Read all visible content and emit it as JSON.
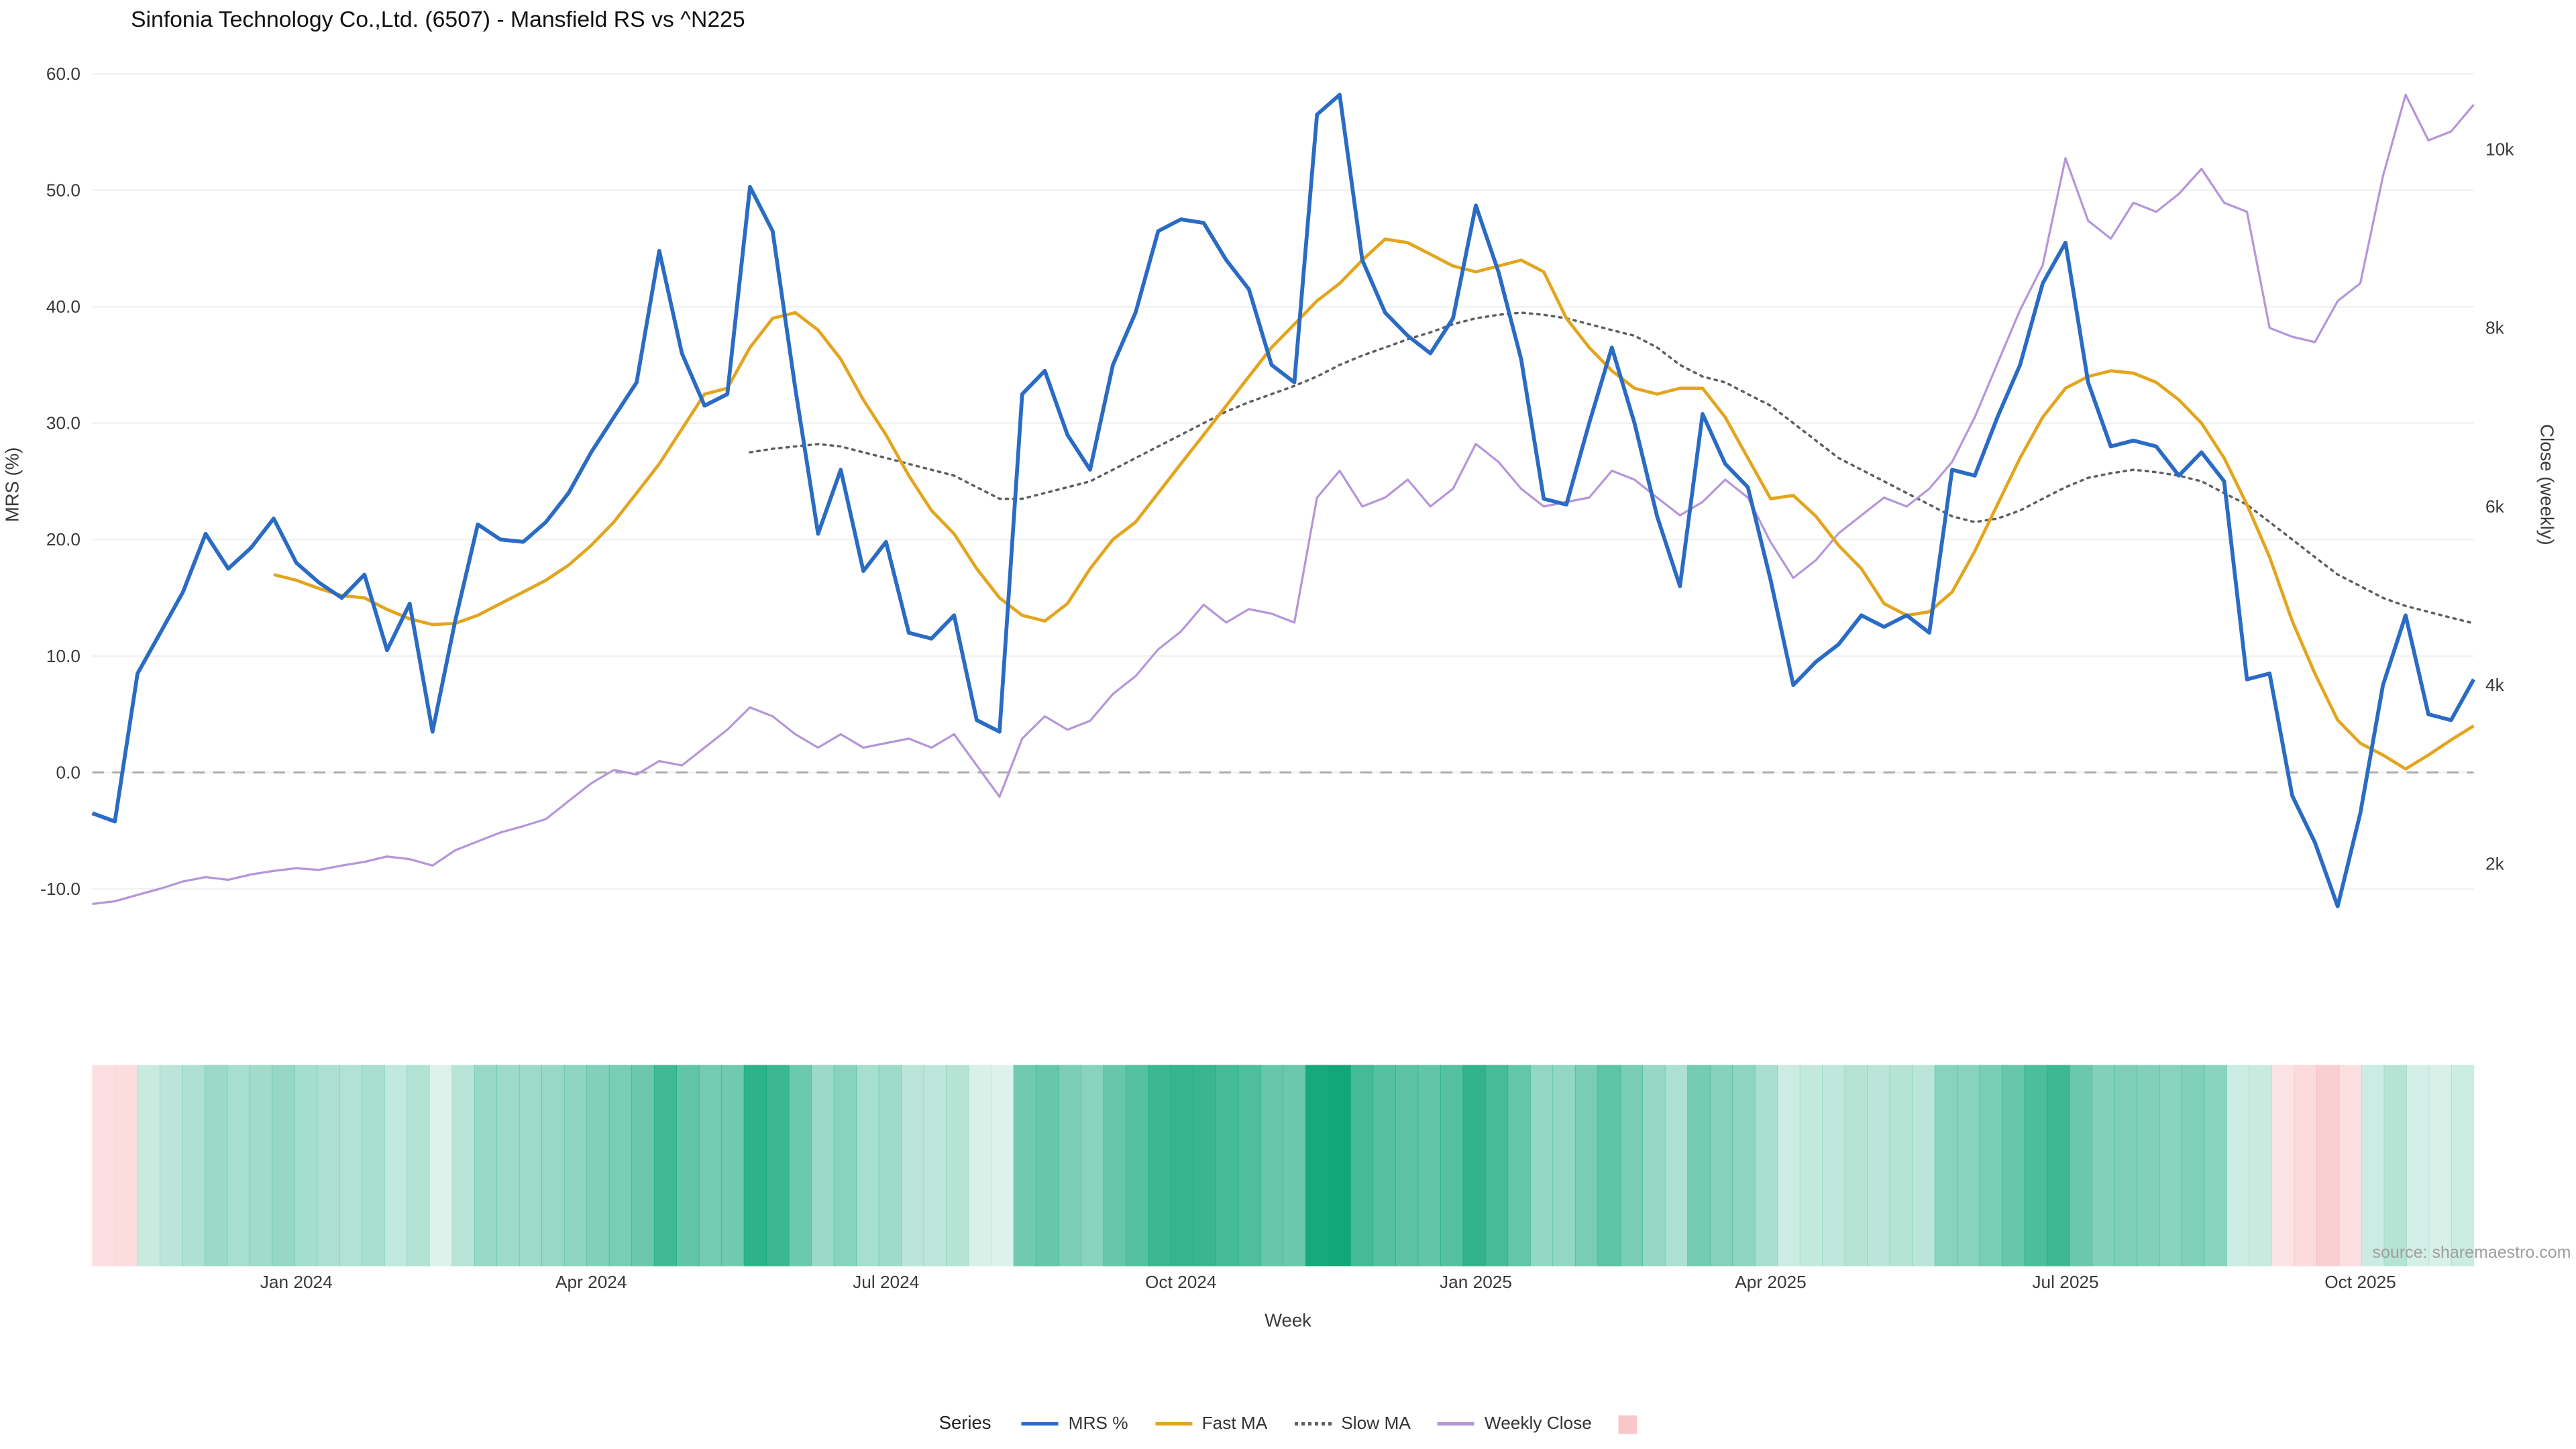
{
  "chart_data": {
    "type": "line",
    "title": "Sinfonia Technology Co.,Ltd. (6507) - Mansfield RS vs ^N225",
    "xlabel": "Week",
    "ylabel_left": "MRS (%)",
    "ylabel_right": "Close (weekly)",
    "n_points": 106,
    "grid": "horizontal-faint",
    "zero_dashed_line": true,
    "x_ticks": {
      "indices": [
        9,
        22,
        35,
        48,
        61,
        74,
        87,
        100
      ],
      "labels": [
        "Jan 2024",
        "Apr 2024",
        "Jul 2024",
        "Oct 2024",
        "Jan 2025",
        "Apr 2025",
        "Jul 2025",
        "Oct 2025"
      ]
    },
    "y_left": {
      "ticks": [
        -10,
        0,
        10,
        20,
        30,
        40,
        50,
        60
      ],
      "labels": [
        "-10.0",
        "0.0",
        "10.0",
        "20.0",
        "30.0",
        "40.0",
        "50.0",
        "60.0"
      ],
      "range": [
        -14,
        62
      ]
    },
    "y_right": {
      "ticks": [
        2000,
        4000,
        6000,
        8000,
        10000
      ],
      "labels": [
        "2k",
        "4k",
        "6k",
        "8k",
        "10k"
      ],
      "range": [
        1400,
        10800
      ]
    },
    "series": [
      {
        "name": "MRS %",
        "axis": "left",
        "color": "#2a6bc4",
        "style": "solid",
        "width": 2.3,
        "values": [
          -3.5,
          -4.2,
          8.5,
          12,
          15.5,
          20.5,
          17.5,
          19.3,
          21.8,
          18,
          16.3,
          15,
          17,
          10.5,
          14.5,
          3.5,
          13,
          21.3,
          20,
          19.8,
          21.5,
          24,
          27.5,
          30.5,
          33.5,
          44.8,
          36,
          31.5,
          32.5,
          50.3,
          46.5,
          33,
          20.5,
          26,
          17.3,
          19.8,
          12,
          11.5,
          13.5,
          4.5,
          3.5,
          32.5,
          34.5,
          29,
          26,
          35,
          39.5,
          46.5,
          47.5,
          47.2,
          44,
          41.5,
          35,
          33.5,
          56.5,
          58.2,
          44,
          39.5,
          37.5,
          36,
          39,
          48.7,
          43,
          35.5,
          23.5,
          23,
          30,
          36.5,
          30,
          22,
          16,
          30.8,
          26.5,
          24.5,
          16.5,
          7.5,
          9.5,
          11,
          13.5,
          12.5,
          13.5,
          12,
          26,
          25.5,
          30.5,
          35,
          42,
          45.5,
          33.5,
          28,
          28.5,
          28,
          25.5,
          27.5,
          25,
          8,
          8.5,
          -2,
          -6,
          -11.5,
          -3.5,
          7.5,
          13.5,
          5,
          4.5,
          8
        ]
      },
      {
        "name": "Fast MA",
        "axis": "left",
        "color": "#e3a51e",
        "style": "solid",
        "width": 1.9,
        "values": [
          null,
          null,
          null,
          null,
          null,
          null,
          null,
          null,
          17,
          16.5,
          15.8,
          15.2,
          15,
          14,
          13.2,
          12.7,
          12.8,
          13.5,
          14.5,
          15.5,
          16.5,
          17.8,
          19.5,
          21.5,
          24,
          26.5,
          29.5,
          32.5,
          33,
          36.5,
          39,
          39.5,
          38,
          35.5,
          32,
          29,
          25.5,
          22.5,
          20.5,
          17.5,
          15,
          13.5,
          13,
          14.5,
          17.5,
          20,
          21.5,
          24,
          26.5,
          29,
          31.5,
          34,
          36.5,
          38.5,
          40.5,
          42,
          44,
          45.8,
          45.5,
          44.5,
          43.5,
          43,
          43.5,
          44,
          43,
          39,
          36.5,
          34.5,
          33,
          32.5,
          33,
          33,
          30.5,
          27,
          23.5,
          23.8,
          22,
          19.5,
          17.5,
          14.5,
          13.5,
          13.8,
          15.5,
          19,
          23,
          27,
          30.5,
          33,
          34,
          34.5,
          34.3,
          33.5,
          32,
          30,
          27,
          23,
          18.5,
          13,
          8.5,
          4.5,
          2.5,
          1.5,
          0.3,
          1.5,
          2.8,
          4
        ]
      },
      {
        "name": "Slow MA",
        "axis": "left",
        "color": "#5f5f5f",
        "style": "dotted",
        "width": 1.4,
        "values": [
          null,
          null,
          null,
          null,
          null,
          null,
          null,
          null,
          null,
          null,
          null,
          null,
          null,
          null,
          null,
          null,
          null,
          null,
          null,
          null,
          null,
          null,
          null,
          null,
          null,
          null,
          null,
          null,
          null,
          27.5,
          27.8,
          28,
          28.2,
          28,
          27.5,
          27,
          26.5,
          26,
          25.5,
          24.5,
          23.5,
          23.5,
          24,
          24.5,
          25,
          26,
          27,
          28,
          29,
          30,
          31,
          31.8,
          32.5,
          33.2,
          34,
          35,
          35.8,
          36.5,
          37.2,
          37.8,
          38.5,
          39,
          39.3,
          39.5,
          39.3,
          39,
          38.5,
          38,
          37.5,
          36.5,
          35,
          34,
          33.5,
          32.5,
          31.5,
          30,
          28.5,
          27,
          26,
          25,
          24,
          23,
          22,
          21.5,
          21.8,
          22.5,
          23.5,
          24.5,
          25.3,
          25.7,
          26,
          25.8,
          25.5,
          25,
          24,
          23,
          21.5,
          20,
          18.5,
          17,
          16,
          15,
          14.3,
          13.8,
          13.3,
          12.8
        ]
      },
      {
        "name": "Weekly Close",
        "axis": "right",
        "color": "#b596d9",
        "style": "solid",
        "width": 1.3,
        "values": [
          1550,
          1580,
          1650,
          1720,
          1800,
          1850,
          1820,
          1880,
          1920,
          1950,
          1930,
          1980,
          2020,
          2080,
          2050,
          1980,
          2150,
          2250,
          2350,
          2420,
          2500,
          2700,
          2900,
          3050,
          3000,
          3150,
          3100,
          3300,
          3500,
          3750,
          3650,
          3450,
          3300,
          3450,
          3300,
          3350,
          3400,
          3300,
          3450,
          3100,
          2750,
          3400,
          3650,
          3500,
          3600,
          3900,
          4100,
          4400,
          4600,
          4900,
          4700,
          4850,
          4800,
          4700,
          6100,
          6400,
          6000,
          6100,
          6300,
          6000,
          6200,
          6700,
          6500,
          6200,
          6000,
          6050,
          6100,
          6400,
          6300,
          6100,
          5900,
          6050,
          6300,
          6100,
          5600,
          5200,
          5400,
          5700,
          5900,
          6100,
          6000,
          6200,
          6500,
          7000,
          7600,
          8200,
          8700,
          9900,
          9200,
          9000,
          9400,
          9300,
          9500,
          9780,
          9400,
          9300,
          8000,
          7900,
          7840,
          8300,
          8500,
          9700,
          10610,
          10100,
          10200,
          10500
        ]
      }
    ],
    "heat_strip": {
      "source_series": "MRS %",
      "positive_rgb": "17,167,121",
      "negative_rgb": "234,95,102",
      "max_abs_positive": 58,
      "description": "weekly band colored by MRS value: green intensity for positive, pink/red for negative"
    }
  },
  "legend": {
    "title": "Series",
    "items": [
      {
        "label": "MRS %"
      },
      {
        "label": "Fast MA"
      },
      {
        "label": "Slow MA"
      },
      {
        "label": "Weekly Close"
      }
    ],
    "heat_swatch": "pink-square"
  },
  "source_text": "source: sharemaestro.com"
}
